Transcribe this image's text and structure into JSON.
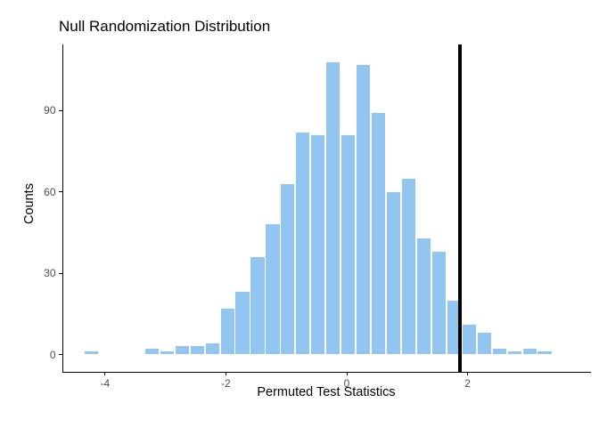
{
  "chart_data": {
    "type": "bar",
    "subtype": "histogram",
    "title": "Null Randomization Distribution",
    "xlabel": "Permuted Test Statistics",
    "ylabel": "Counts",
    "bin_start": -4.35,
    "bin_width": 0.25,
    "counts": [
      1,
      0,
      0,
      0,
      2,
      1,
      3,
      3,
      4,
      17,
      23,
      36,
      48,
      63,
      82,
      81,
      108,
      81,
      107,
      89,
      60,
      65,
      43,
      38,
      20,
      11,
      8,
      2,
      1,
      2,
      1
    ],
    "total_count": 1000,
    "x_ticks": [
      -4,
      -2,
      0,
      2
    ],
    "y_ticks": [
      0,
      30,
      60,
      90
    ],
    "xlim": [
      -4.7,
      4.05
    ],
    "ylim": [
      0,
      114
    ],
    "vline_x": 1.87,
    "bar_color": "#92C5F0",
    "bar_gap_color": "#FFFFFF",
    "vline_color": "#000000",
    "axis_color": "#000000",
    "tick_label_color": "#4D4D4D",
    "grid": "off",
    "legend": "none"
  }
}
